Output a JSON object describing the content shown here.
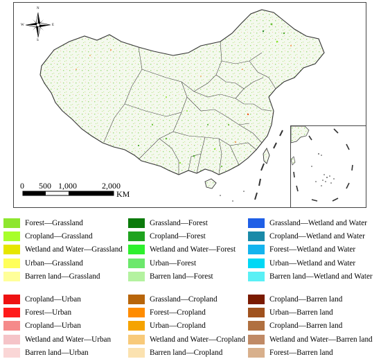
{
  "compass": {
    "n": "N",
    "s": "S",
    "e": "E",
    "w": "W"
  },
  "scale_bar": {
    "ticks": [
      "0",
      "500",
      "1,000",
      "2,000"
    ],
    "unit": "KM"
  },
  "legend": {
    "group1": [
      [
        {
          "label": "Forest—Grassland",
          "color": "#8ee62e"
        },
        {
          "label": "Cropland—Grassland",
          "color": "#a8ff2a"
        },
        {
          "label": "Wetland and Water—Grassland",
          "color": "#e6e600"
        },
        {
          "label": "Urban—Grassland",
          "color": "#ffff5a"
        },
        {
          "label": "Barren land—Grassland",
          "color": "#ffff9a"
        }
      ],
      [
        {
          "label": "Grassland—Forest",
          "color": "#0b7a0b"
        },
        {
          "label": "Cropland—Forest",
          "color": "#1fa31f"
        },
        {
          "label": "Wetland and Water—Forest",
          "color": "#2df02d"
        },
        {
          "label": "Urban—Forest",
          "color": "#6ce86c"
        },
        {
          "label": "Barren land—Forest",
          "color": "#b4f2a0"
        }
      ],
      [
        {
          "label": "Grassland—Wetland and Water",
          "color": "#1f5fe6"
        },
        {
          "label": "Cropland—Wetland and Water",
          "color": "#1a8aa8"
        },
        {
          "label": "Forest—Wetland and Water",
          "color": "#14b4ee"
        },
        {
          "label": "Urban—Wetland and Water",
          "color": "#00d8f5"
        },
        {
          "label": "Barren land—Wetland and Water",
          "color": "#5af0f5"
        }
      ]
    ],
    "group2": [
      [
        {
          "label": "Cropland—Urban",
          "color": "#ee1111"
        },
        {
          "label": "Forest—Urban",
          "color": "#ff1a1a"
        },
        {
          "label": "Cropland—Urban",
          "color": "#f58a8a"
        },
        {
          "label": "Wetland and Water—Urban",
          "color": "#f5c4c8"
        },
        {
          "label": "Barren land—Urban",
          "color": "#fad6d6"
        }
      ],
      [
        {
          "label": "Grassland—Cropland",
          "color": "#b8650a"
        },
        {
          "label": "Forest—Cropland",
          "color": "#ff8c00"
        },
        {
          "label": "Urban—Cropland",
          "color": "#f5a300"
        },
        {
          "label": "Wetland and Water—Cropland",
          "color": "#f8ca7a"
        },
        {
          "label": "Barren land—Cropland",
          "color": "#fbe2b0"
        }
      ],
      [
        {
          "label": "Cropland—Barren land",
          "color": "#7a1a00"
        },
        {
          "label": "Urban—Barren land",
          "color": "#a0521e"
        },
        {
          "label": "Cropland—Barren land",
          "color": "#b07040"
        },
        {
          "label": "Wetland and Water—Barren land",
          "color": "#c08a66"
        },
        {
          "label": "Forest—Barren land",
          "color": "#d8b08c"
        }
      ]
    ]
  }
}
